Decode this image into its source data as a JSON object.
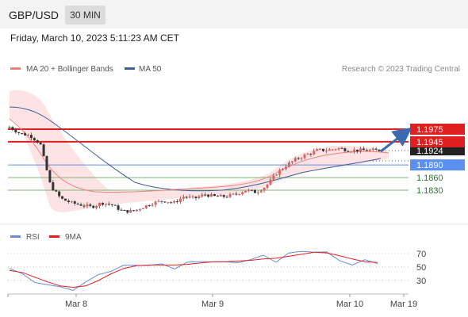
{
  "header": {
    "pair": "GBP/USD",
    "timeframe": "30 MIN"
  },
  "timestamp": "Friday, March 10, 2023 5:11:23 AM CET",
  "colors": {
    "ma20": "#f08080",
    "ma50": "#3b5f9a",
    "resistance": "#e02020",
    "support_blue": "#5b8ff0",
    "support_green": "#7ab870",
    "current": "#222222",
    "rsi": "#6a8be0",
    "rsi_ma": "#e02020",
    "band_fill": "#fde3e3",
    "arrow": "#3b6ab0"
  },
  "legend": {
    "ma20": "MA 20 + Bollinger Bands",
    "ma50": "MA 50",
    "source": "Research © 2023 Trading Central"
  },
  "rsi_legend": {
    "rsi": "RSI",
    "ma": "9MA"
  },
  "chart_data": [
    {
      "type": "candlestick",
      "title": "GBP/USD 30 MIN",
      "x": [
        "Mar 8",
        "Mar 9",
        "Mar 10",
        "Mar 19"
      ],
      "ylim": [
        1.179,
        1.201
      ],
      "current_price": "1.1924",
      "levels": [
        {
          "value": "1.1975",
          "kind": "resistance",
          "style": "boxed"
        },
        {
          "value": "1.1945",
          "kind": "resistance",
          "style": "boxed"
        },
        {
          "value": "1.1890",
          "kind": "support",
          "style": "boxed"
        },
        {
          "value": "1.1860",
          "kind": "support",
          "style": "text"
        },
        {
          "value": "1.1830",
          "kind": "support",
          "style": "text"
        }
      ],
      "close_path": [
        1.198,
        1.1965,
        1.196,
        1.194,
        1.184,
        1.181,
        1.18,
        1.1795,
        1.179,
        1.18,
        1.1795,
        1.178,
        1.178,
        1.179,
        1.18,
        1.1805,
        1.18,
        1.1815,
        1.181,
        1.182,
        1.1815,
        1.1815,
        1.182,
        1.183,
        1.1825,
        1.184,
        1.187,
        1.189,
        1.1905,
        1.1915,
        1.1925,
        1.1925,
        1.193,
        1.1925,
        1.1925,
        1.1925,
        1.1925
      ],
      "ma50_path": [
        1.202,
        1.201,
        1.199,
        1.197,
        1.194,
        1.1905,
        1.187,
        1.184,
        1.1815,
        1.18,
        1.1795,
        1.18,
        1.1805,
        1.181,
        1.1815,
        1.182,
        1.183,
        1.184,
        1.1855,
        1.187,
        1.1885,
        1.19
      ],
      "ma20_path": [
        1.201,
        1.199,
        1.195,
        1.19,
        1.185,
        1.1815,
        1.18,
        1.1795,
        1.1795,
        1.18,
        1.1805,
        1.181,
        1.1815,
        1.182,
        1.183,
        1.185,
        1.187,
        1.189,
        1.1905,
        1.1915,
        1.192,
        1.1925
      ],
      "forecast_to": "1.1975"
    },
    {
      "type": "line",
      "title": "RSI",
      "yticks": [
        "70",
        "50",
        "30"
      ],
      "ylim": [
        15,
        85
      ],
      "series": [
        {
          "name": "RSI",
          "values": [
            48,
            38,
            30,
            22,
            20,
            18,
            25,
            40,
            45,
            50,
            55,
            52,
            53,
            50,
            55,
            58,
            60,
            55,
            58,
            62,
            65,
            60,
            70,
            72,
            75,
            70,
            60,
            55,
            58,
            57
          ]
        },
        {
          "name": "9MA",
          "values": [
            45,
            42,
            35,
            28,
            22,
            20,
            22,
            30,
            40,
            48,
            52,
            53,
            53,
            53,
            54,
            56,
            58,
            58,
            59,
            60,
            62,
            63,
            66,
            69,
            72,
            71,
            67,
            62,
            58,
            57
          ]
        }
      ]
    }
  ]
}
